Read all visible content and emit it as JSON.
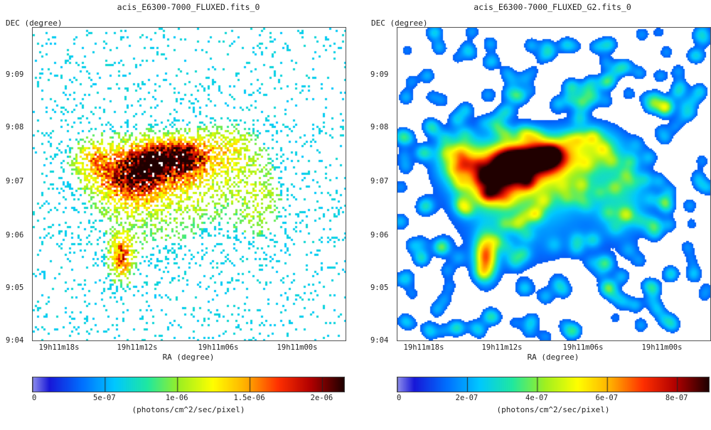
{
  "chart_data": [
    {
      "type": "heatmap",
      "title": "acis_E6300-7000_FLUXED.fits_0",
      "xlabel": "RA (degree)",
      "ylabel": "DEC (degree)",
      "x_ticks": [
        "19h11m18s",
        "19h11m12s",
        "19h11m06s",
        "19h11m00s"
      ],
      "y_ticks": [
        "9:09",
        "9:08",
        "9:07",
        "9:06",
        "9:05",
        "9:04"
      ],
      "colorbar": {
        "label": "(photons/cm^2/sec/pixel)",
        "ticks": [
          "0",
          "5e-07",
          "1e-06",
          "1.5e-06",
          "2e-06"
        ],
        "min": 0,
        "max": 2.15e-06,
        "colormap": "jet"
      },
      "style": "sparse-pixels"
    },
    {
      "type": "heatmap",
      "title": "acis_E6300-7000_FLUXED_G2.fits_0",
      "xlabel": "RA (degree)",
      "ylabel": "DEC (degree)",
      "x_ticks": [
        "19h11m18s",
        "19h11m12s",
        "19h11m06s",
        "19h11m00s"
      ],
      "y_ticks": [
        "9:09",
        "9:08",
        "9:07",
        "9:06",
        "9:05",
        "9:04"
      ],
      "colorbar": {
        "label": "(photons/cm^2/sec/pixel)",
        "ticks": [
          "0",
          "2e-07",
          "4e-07",
          "6e-07",
          "8e-07"
        ],
        "min": 0,
        "max": 8.9e-07,
        "colormap": "jet"
      },
      "style": "smoothed"
    }
  ],
  "colors": {
    "jet": [
      "#ffffff",
      "#1818d8",
      "#0070ff",
      "#00c8ff",
      "#20e8a0",
      "#a0f020",
      "#ffff00",
      "#ffb000",
      "#ff3000",
      "#b00000",
      "#200000"
    ]
  }
}
